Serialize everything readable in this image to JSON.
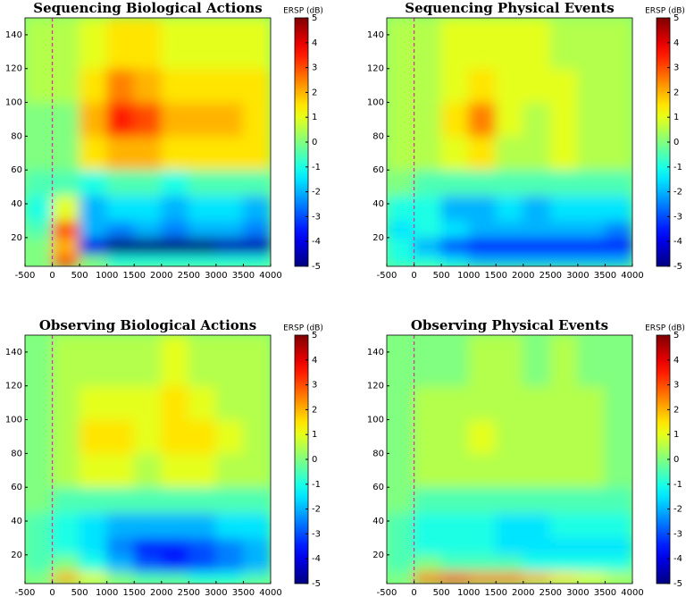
{
  "chart_data": [
    {
      "type": "heatmap",
      "title": "Sequencing Biological Actions",
      "colorbar_label": "ERSP (dB)",
      "colormap": "jet",
      "x_bins": [
        -500,
        0,
        500,
        1000,
        1500,
        2000,
        2500,
        3000,
        3500,
        4000
      ],
      "y_bins": [
        3,
        10,
        20,
        30,
        45,
        60,
        80,
        100,
        120,
        150
      ],
      "values": [
        [
          0,
          3,
          0,
          -1,
          -1,
          -1,
          -1,
          -1,
          -1
        ],
        [
          0,
          2,
          -4,
          -5,
          -5,
          -5,
          -5,
          -4.5,
          -4.5
        ],
        [
          -0.5,
          3,
          -2,
          -2.5,
          -2,
          -2.5,
          -2,
          -2,
          -2.5
        ],
        [
          -1,
          1,
          -2,
          -1.5,
          -1.5,
          -2,
          -1.5,
          -1.5,
          -2
        ],
        [
          -0.5,
          -0.5,
          -1,
          -0.5,
          -0.5,
          -1,
          -0.5,
          -0.5,
          -0.5
        ],
        [
          0,
          0,
          1.5,
          2,
          2,
          1.5,
          1.5,
          1.5,
          1.5
        ],
        [
          0,
          0,
          2,
          3.5,
          3,
          2,
          2,
          2,
          1.5
        ],
        [
          0.5,
          0.5,
          1.5,
          2.5,
          2,
          1.5,
          1.5,
          1.5,
          1.5
        ],
        [
          0.5,
          0.5,
          1,
          1.5,
          1.5,
          1,
          1,
          1,
          1
        ]
      ],
      "xlim": [
        -500,
        4000
      ],
      "xticks": [
        -500,
        0,
        500,
        1000,
        1500,
        2000,
        2500,
        3000,
        3500,
        4000
      ],
      "ylim": [
        3,
        150
      ],
      "yticks": [
        20,
        40,
        60,
        80,
        100,
        120,
        140
      ],
      "clim": [
        -5,
        5
      ],
      "cticks": [
        -5,
        -4,
        -3,
        -2,
        -1,
        0,
        1,
        2,
        3,
        4,
        5
      ],
      "onset_x": 0,
      "onset_color": "#d03c9c"
    },
    {
      "type": "heatmap",
      "title": "Sequencing Physical Events",
      "colorbar_label": "ERSP (dB)",
      "colormap": "jet",
      "x_bins": [
        -500,
        0,
        500,
        1000,
        1500,
        2000,
        2500,
        3000,
        3500,
        4000
      ],
      "y_bins": [
        3,
        10,
        20,
        30,
        45,
        60,
        80,
        100,
        120,
        150
      ],
      "values": [
        [
          -1,
          -1,
          -1.5,
          -2,
          -2,
          -2,
          -2,
          -2,
          -2
        ],
        [
          -1,
          -2,
          -3,
          -3.5,
          -3.5,
          -3.5,
          -3.5,
          -3.5,
          -3.5
        ],
        [
          -1.5,
          -1,
          -1.5,
          -2,
          -2,
          -2,
          -2,
          -2,
          -2.5
        ],
        [
          -1,
          -1,
          -2,
          -2,
          -1.5,
          -2,
          -1.5,
          -1.5,
          -1.5
        ],
        [
          0,
          -0.5,
          -0.5,
          -0.5,
          -0.5,
          -0.5,
          -0.5,
          -0.5,
          -0.5
        ],
        [
          0.5,
          0.5,
          1,
          1.5,
          0.5,
          0.5,
          1,
          0.5,
          0.5
        ],
        [
          0.5,
          0.5,
          1.5,
          2.5,
          1,
          0.5,
          1,
          0.5,
          0.5
        ],
        [
          0.5,
          0.5,
          1,
          1.5,
          1,
          1,
          1,
          0.5,
          0.5
        ],
        [
          0.5,
          0.5,
          1,
          1,
          1,
          1,
          0.5,
          0.5,
          0.5
        ]
      ],
      "xlim": [
        -500,
        4000
      ],
      "xticks": [
        -500,
        0,
        500,
        1000,
        1500,
        2000,
        2500,
        3000,
        3500,
        4000
      ],
      "ylim": [
        3,
        150
      ],
      "yticks": [
        20,
        40,
        60,
        80,
        100,
        120,
        140
      ],
      "clim": [
        -5,
        5
      ],
      "cticks": [
        -5,
        -4,
        -3,
        -2,
        -1,
        0,
        1,
        2,
        3,
        4,
        5
      ],
      "onset_x": 0,
      "onset_color": "#d03c9c"
    },
    {
      "type": "heatmap",
      "title": "Observing Biological Actions",
      "colorbar_label": "ERSP (dB)",
      "colormap": "jet",
      "x_bins": [
        -500,
        0,
        500,
        1000,
        1500,
        2000,
        2500,
        3000,
        3500,
        4000
      ],
      "y_bins": [
        3,
        10,
        20,
        30,
        45,
        60,
        80,
        100,
        120,
        150
      ],
      "values": [
        [
          0,
          2,
          1,
          0,
          -0.5,
          -0.5,
          -1,
          -1,
          -0.5
        ],
        [
          -0.5,
          0,
          -1,
          -2,
          -3,
          -3.5,
          -3,
          -2.5,
          -2
        ],
        [
          -0.5,
          -1,
          -1.5,
          -2.5,
          -3.5,
          -3.5,
          -3,
          -2.5,
          -2
        ],
        [
          -0.5,
          -1,
          -1.5,
          -2,
          -2,
          -2,
          -2,
          -1.5,
          -1.5
        ],
        [
          0,
          -0.5,
          -0.5,
          -0.5,
          -0.5,
          -0.5,
          -0.5,
          -0.5,
          -0.5
        ],
        [
          0,
          0.5,
          1,
          1,
          0.5,
          1,
          1,
          0.5,
          0.5
        ],
        [
          0,
          0.5,
          1.5,
          1.5,
          1,
          1.5,
          1.5,
          1,
          0.5
        ],
        [
          0,
          0.5,
          1,
          1,
          1,
          1.5,
          1,
          0.5,
          0.5
        ],
        [
          0,
          0.5,
          0.5,
          0.5,
          0.5,
          1,
          0.5,
          0.5,
          0.5
        ]
      ],
      "xlim": [
        -500,
        4000
      ],
      "xticks": [
        -500,
        0,
        500,
        1000,
        1500,
        2000,
        2500,
        3000,
        3500,
        4000
      ],
      "ylim": [
        3,
        150
      ],
      "yticks": [
        20,
        40,
        60,
        80,
        100,
        120,
        140
      ],
      "clim": [
        -5,
        5
      ],
      "cticks": [
        -5,
        -4,
        -3,
        -2,
        -1,
        0,
        1,
        2,
        3,
        4,
        5
      ],
      "onset_x": 0,
      "onset_color": "#d03c9c"
    },
    {
      "type": "heatmap",
      "title": "Observing Physical Events",
      "colorbar_label": "ERSP (dB)",
      "colormap": "jet",
      "x_bins": [
        -500,
        0,
        500,
        1000,
        1500,
        2000,
        2500,
        3000,
        3500,
        4000
      ],
      "y_bins": [
        3,
        10,
        20,
        30,
        45,
        60,
        80,
        100,
        120,
        150
      ],
      "values": [
        [
          0,
          2.5,
          3,
          2.5,
          2.5,
          2,
          1.5,
          1,
          0.5
        ],
        [
          -0.5,
          0,
          -0.5,
          -0.5,
          -0.5,
          -1,
          -1,
          -1,
          -1
        ],
        [
          -0.5,
          -1,
          -1,
          -1,
          -1.5,
          -1.5,
          -1.5,
          -1.5,
          -1.5
        ],
        [
          -0.5,
          -1,
          -1,
          -1,
          -1.5,
          -1.5,
          -1,
          -1,
          -1
        ],
        [
          0,
          -0.5,
          -0.5,
          -0.5,
          -0.5,
          -0.5,
          -0.5,
          -0.5,
          -0.5
        ],
        [
          0,
          0.5,
          0.5,
          0.5,
          0.5,
          0.5,
          0.5,
          0.5,
          0
        ],
        [
          0,
          0.5,
          0.5,
          1,
          0.5,
          0.5,
          0.5,
          0.5,
          0
        ],
        [
          0,
          0.5,
          0.5,
          0.5,
          0.5,
          0.5,
          0.5,
          0.5,
          0
        ],
        [
          0,
          0,
          0,
          0.5,
          0.5,
          0,
          0.5,
          0,
          0
        ]
      ],
      "xlim": [
        -500,
        4000
      ],
      "xticks": [
        -500,
        0,
        500,
        1000,
        1500,
        2000,
        2500,
        3000,
        3500,
        4000
      ],
      "ylim": [
        3,
        150
      ],
      "yticks": [
        20,
        40,
        60,
        80,
        100,
        120,
        140
      ],
      "clim": [
        -5,
        5
      ],
      "cticks": [
        -5,
        -4,
        -3,
        -2,
        -1,
        0,
        1,
        2,
        3,
        4,
        5
      ],
      "onset_x": 0,
      "onset_color": "#d03c9c"
    }
  ]
}
